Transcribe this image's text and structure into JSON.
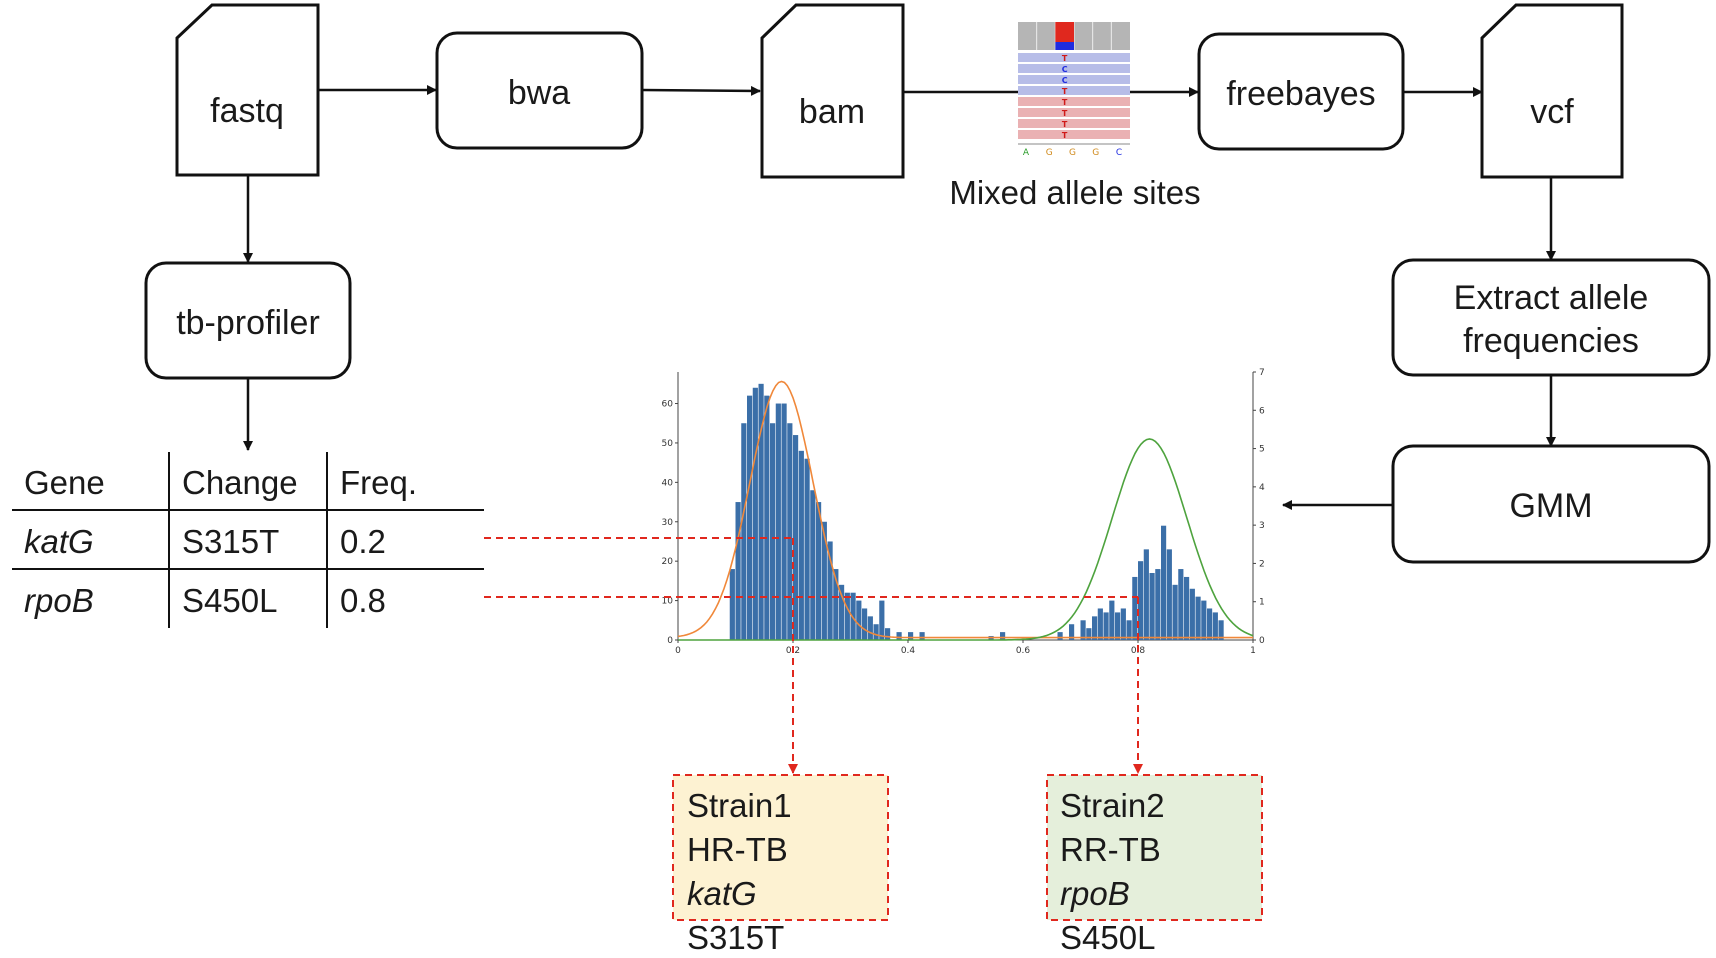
{
  "nodes": {
    "fastq": "fastq",
    "bwa": "bwa",
    "bam": "bam",
    "freebayes": "freebayes",
    "vcf": "vcf",
    "tbprofiler": "tb-profiler",
    "extract_line1": "Extract allele",
    "extract_line2": "frequencies",
    "gmm": "GMM"
  },
  "mixed_sites": {
    "caption": "Mixed allele sites",
    "read_letters": [
      "T",
      "C",
      "C",
      "T",
      "T",
      "T",
      "T",
      "T"
    ],
    "ref_letters": [
      "A",
      "G",
      "G",
      "G",
      "C"
    ]
  },
  "table": {
    "headers": [
      "Gene",
      "Change",
      "Freq."
    ],
    "rows": [
      [
        "katG",
        "S315T",
        "0.2"
      ],
      [
        "rpoB",
        "S450L",
        "0.8"
      ]
    ]
  },
  "strains": [
    {
      "name": "Strain1",
      "type": "HR-TB",
      "gene": "katG",
      "mutation": "S315T"
    },
    {
      "name": "Strain2",
      "type": "RR-TB",
      "gene": "rpoB",
      "mutation": "S450L"
    }
  ],
  "colors": {
    "bar": "#3b6fa8",
    "gaussian1": "#f0883a",
    "gaussian2": "#4ea33e",
    "dashed": "#e0281e",
    "strain1_bg": "#fdf2d2",
    "strain2_bg": "#e5efdb",
    "read_blue": "#b7bde8",
    "read_red": "#eab1b3"
  },
  "chart_data": {
    "type": "bar",
    "xlim": [
      0,
      1
    ],
    "ylim_left": [
      0,
      68
    ],
    "ylim_right": [
      0,
      7
    ],
    "x_ticks": [
      "0",
      "0.2",
      "0.4",
      "0.6",
      "0.8",
      "1"
    ],
    "y_ticks_left": [
      "0",
      "10",
      "20",
      "30",
      "40",
      "50",
      "60"
    ],
    "y_ticks_right": [
      "0",
      "1",
      "2",
      "3",
      "4",
      "5",
      "6",
      "7"
    ],
    "bin_width": 0.01,
    "x": [
      0.09,
      0.1,
      0.11,
      0.12,
      0.13,
      0.14,
      0.15,
      0.16,
      0.17,
      0.18,
      0.19,
      0.2,
      0.21,
      0.22,
      0.23,
      0.24,
      0.25,
      0.26,
      0.27,
      0.28,
      0.29,
      0.3,
      0.31,
      0.32,
      0.33,
      0.34,
      0.35,
      0.36,
      0.38,
      0.4,
      0.42,
      0.54,
      0.56,
      0.66,
      0.68,
      0.7,
      0.71,
      0.72,
      0.73,
      0.74,
      0.75,
      0.76,
      0.77,
      0.78,
      0.79,
      0.8,
      0.81,
      0.82,
      0.83,
      0.84,
      0.85,
      0.86,
      0.87,
      0.88,
      0.89,
      0.9,
      0.91,
      0.92,
      0.93,
      0.94
    ],
    "values": [
      18,
      35,
      55,
      62,
      64,
      65,
      62,
      55,
      60,
      60,
      55,
      52,
      48,
      46,
      38,
      35,
      30,
      25,
      18,
      14,
      12,
      12,
      10,
      8,
      6,
      4,
      10,
      3,
      2,
      2,
      2,
      1,
      2,
      2,
      4,
      5,
      3,
      6,
      8,
      7,
      10,
      7,
      8,
      5,
      16,
      20,
      23,
      17,
      18,
      29,
      23,
      14,
      18,
      16,
      13,
      11,
      10,
      8,
      7,
      5
    ],
    "series": [
      {
        "name": "",
        "kind": "gaussian",
        "mean": 0.18,
        "peak": 65,
        "sd": 0.055,
        "baseline": 0.6,
        "axis": "left"
      },
      {
        "name": "",
        "kind": "gaussian",
        "mean": 0.82,
        "peak": 5.25,
        "sd": 0.065,
        "baseline": 0.0,
        "axis": "right"
      }
    ],
    "guide_lines": [
      {
        "freq": 0.2,
        "chart_y": 25
      },
      {
        "freq": 0.8,
        "chart_y": 10
      }
    ],
    "title": "",
    "xlabel": "",
    "ylabel": ""
  }
}
